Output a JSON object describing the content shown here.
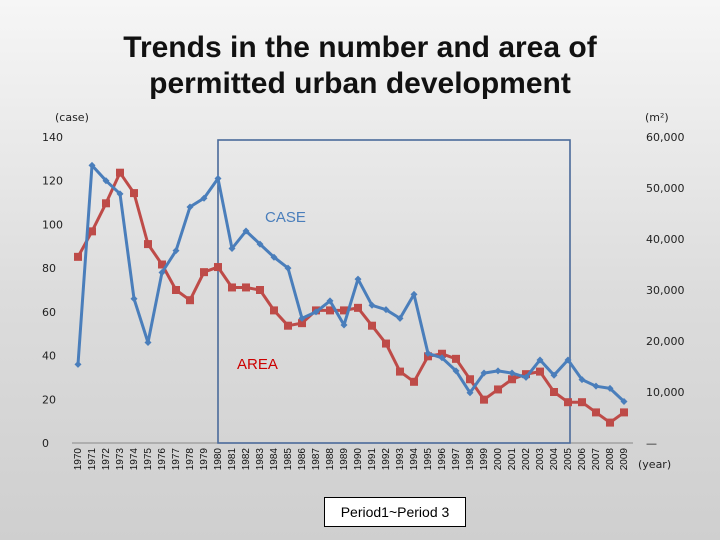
{
  "title_lines": [
    "Trends in the number and area of",
    "permitted urban development"
  ],
  "period_note": "Period1~Period 3",
  "chart_data": {
    "type": "line",
    "title": "Trends in the number and area of permitted urban development",
    "left_axis": {
      "unit": "(case)",
      "range": [
        0,
        140
      ],
      "ticks": [
        0,
        20,
        40,
        60,
        80,
        100,
        120,
        140
      ],
      "tick_labels": [
        "0",
        "20",
        "40",
        "60",
        "80",
        "100",
        "120",
        "140"
      ]
    },
    "right_axis": {
      "unit": "(m²)",
      "range": [
        0,
        60000
      ],
      "ticks": [
        0,
        10000,
        20000,
        30000,
        40000,
        50000,
        60000
      ],
      "tick_labels": [
        "—",
        "10,000",
        "20,000",
        "30,000",
        "40,000",
        "50,000",
        "60,000"
      ]
    },
    "x_unit": "(year)",
    "categories": [
      "1970",
      "1971",
      "1972",
      "1973",
      "1974",
      "1975",
      "1976",
      "1977",
      "1978",
      "1979",
      "1980",
      "1981",
      "1982",
      "1983",
      "1984",
      "1985",
      "1986",
      "1987",
      "1988",
      "1989",
      "1990",
      "1991",
      "1992",
      "1993",
      "1994",
      "1995",
      "1996",
      "1997",
      "1998",
      "1999",
      "2000",
      "2001",
      "2002",
      "2003",
      "2004",
      "2005",
      "2006",
      "2007",
      "2008",
      "2009"
    ],
    "series": [
      {
        "name": "CASE",
        "axis": "left",
        "color": "#4a7ebb",
        "marker": "diamond",
        "values": [
          36,
          127,
          120,
          114,
          66,
          46,
          78,
          88,
          108,
          112,
          121,
          89,
          97,
          91,
          85,
          80,
          57,
          60,
          65,
          54,
          75,
          63,
          61,
          57,
          68,
          41,
          39,
          33,
          23,
          32,
          33,
          32,
          30,
          38,
          31,
          38,
          29,
          26,
          25,
          19
        ]
      },
      {
        "name": "AREA",
        "axis": "right",
        "color": "#be4b48",
        "marker": "square",
        "values": [
          36500,
          41500,
          47000,
          53000,
          49000,
          39000,
          35000,
          30000,
          28000,
          33500,
          34500,
          30500,
          30500,
          30000,
          26000,
          23000,
          23500,
          26000,
          26000,
          26000,
          26500,
          23000,
          19500,
          14000,
          12000,
          17000,
          17500,
          16500,
          12500,
          8500,
          10500,
          12500,
          13500,
          14000,
          10000,
          8000,
          8000,
          6000,
          4000,
          6000
        ]
      }
    ],
    "annotations": [
      {
        "text": "CASE",
        "color": "#4a7ebb"
      },
      {
        "text": "AREA",
        "color": "#cc0000"
      }
    ],
    "highlight_range": [
      "1980",
      "2005"
    ],
    "grid": false,
    "legend": "none"
  }
}
